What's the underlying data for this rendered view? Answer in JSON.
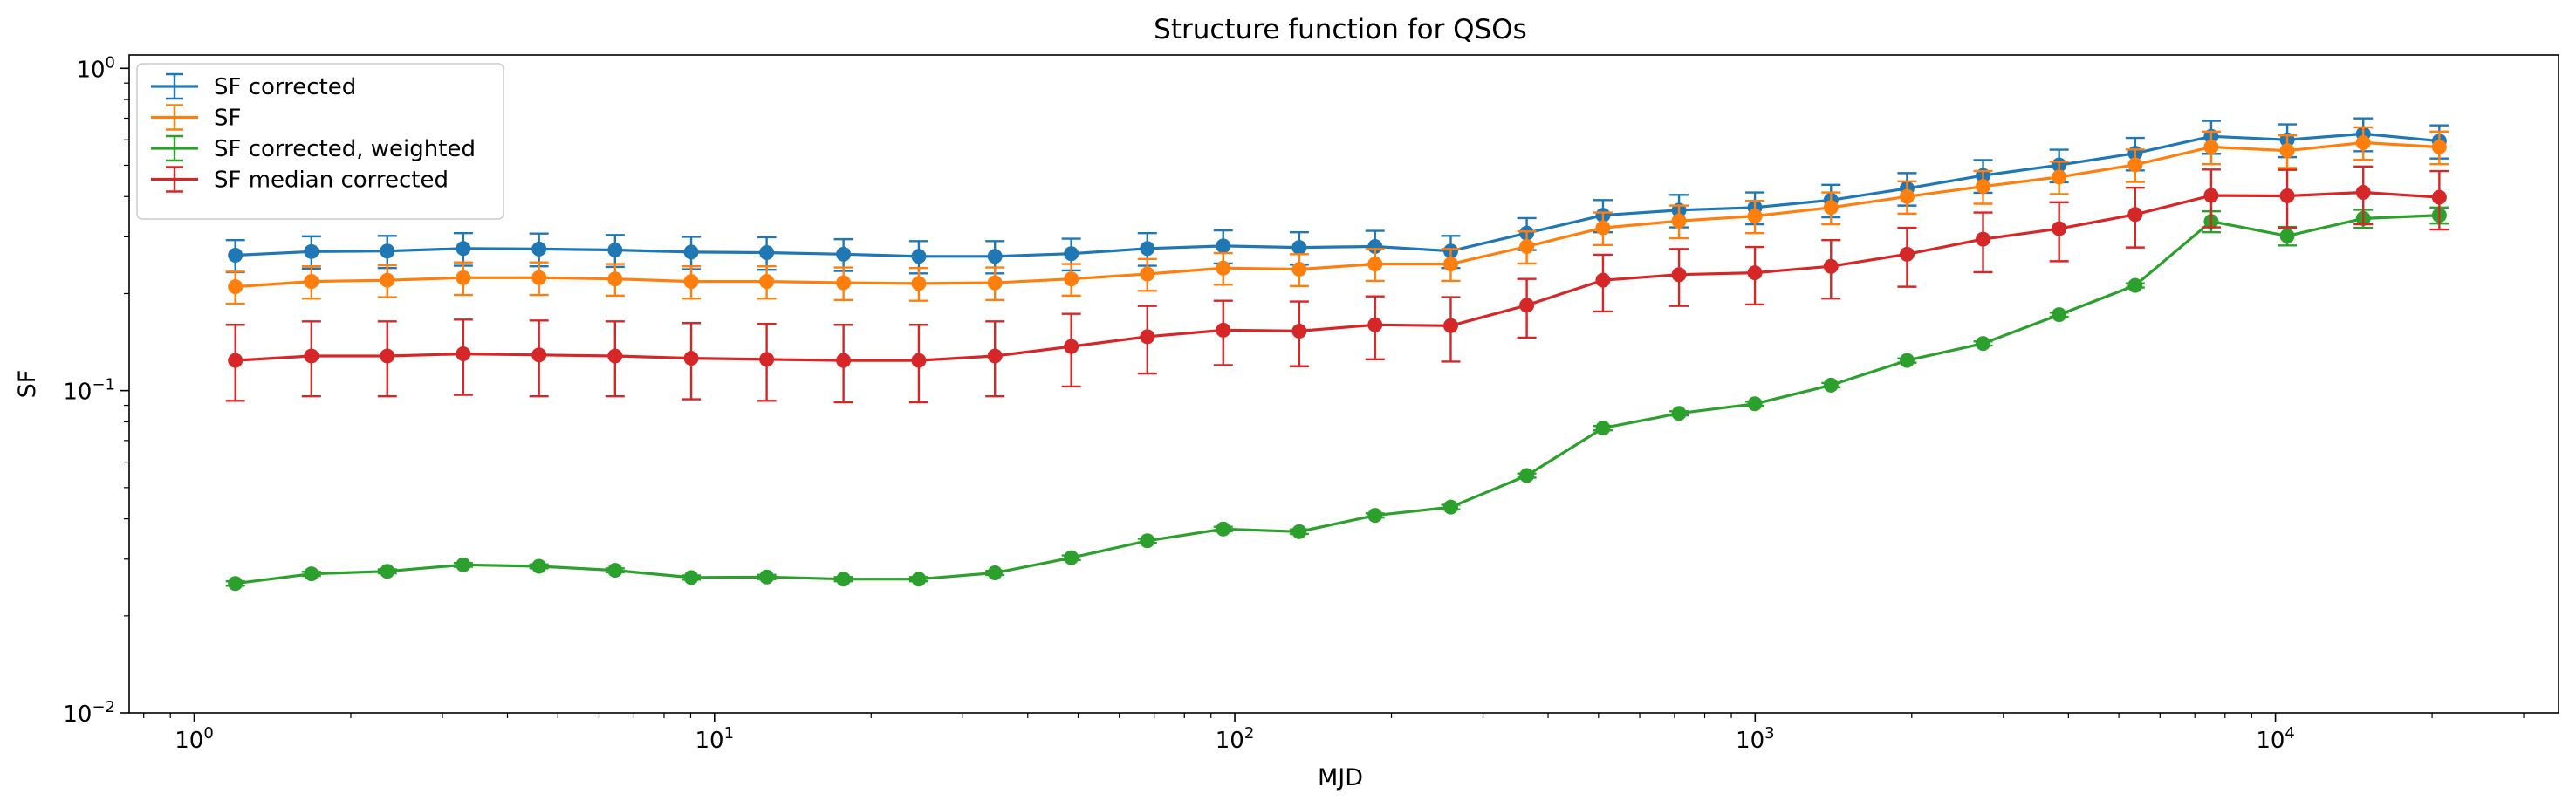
{
  "chart_data": {
    "type": "line",
    "title": "Structure function for QSOs",
    "xlabel": "MJD",
    "ylabel": "SF",
    "xscale": "log",
    "yscale": "log",
    "xlim": [
      0.75,
      35000
    ],
    "ylim": [
      0.01,
      1.1
    ],
    "x_ticks": [
      {
        "value": 1,
        "base": "10",
        "exp": "0"
      },
      {
        "value": 10,
        "base": "10",
        "exp": "1"
      },
      {
        "value": 100,
        "base": "10",
        "exp": "2"
      },
      {
        "value": 1000,
        "base": "10",
        "exp": "3"
      },
      {
        "value": 10000,
        "base": "10",
        "exp": "4"
      }
    ],
    "y_ticks": [
      {
        "value": 0.01,
        "base": "10",
        "exp": "−2"
      },
      {
        "value": 0.1,
        "base": "10",
        "exp": "−1"
      },
      {
        "value": 1,
        "base": "10",
        "exp": "0"
      }
    ],
    "legend_position": "top-left",
    "grid": false,
    "x": [
      1.2,
      1.68,
      2.35,
      3.29,
      4.6,
      6.44,
      9.02,
      12.6,
      17.7,
      24.7,
      34.6,
      48.5,
      67.9,
      95,
      133,
      186,
      260,
      364,
      510,
      714,
      999,
      1399,
      1959,
      2742,
      3839,
      5375,
      7525,
      10535,
      14749,
      20649
    ],
    "series": [
      {
        "name": "SF corrected",
        "color": "#1f77b4",
        "values": [
          0.263,
          0.27,
          0.271,
          0.276,
          0.275,
          0.273,
          0.269,
          0.268,
          0.265,
          0.261,
          0.261,
          0.266,
          0.276,
          0.281,
          0.278,
          0.28,
          0.271,
          0.308,
          0.35,
          0.363,
          0.37,
          0.39,
          0.424,
          0.465,
          0.501,
          0.545,
          0.615,
          0.6,
          0.626,
          0.595
        ],
        "err_low": [
          0.03,
          0.031,
          0.031,
          0.032,
          0.032,
          0.031,
          0.031,
          0.031,
          0.03,
          0.03,
          0.03,
          0.03,
          0.032,
          0.033,
          0.032,
          0.033,
          0.031,
          0.035,
          0.04,
          0.042,
          0.042,
          0.045,
          0.049,
          0.054,
          0.058,
          0.063,
          0.072,
          0.07,
          0.073,
          0.07
        ],
        "err_high": [
          0.03,
          0.031,
          0.031,
          0.032,
          0.032,
          0.031,
          0.031,
          0.031,
          0.03,
          0.03,
          0.03,
          0.03,
          0.032,
          0.033,
          0.032,
          0.033,
          0.031,
          0.035,
          0.04,
          0.042,
          0.042,
          0.045,
          0.049,
          0.054,
          0.058,
          0.063,
          0.072,
          0.07,
          0.073,
          0.07
        ]
      },
      {
        "name": "SF",
        "color": "#ff7f0e",
        "values": [
          0.21,
          0.218,
          0.22,
          0.224,
          0.224,
          0.222,
          0.218,
          0.218,
          0.216,
          0.215,
          0.216,
          0.222,
          0.23,
          0.24,
          0.238,
          0.247,
          0.247,
          0.28,
          0.32,
          0.336,
          0.348,
          0.37,
          0.4,
          0.43,
          0.46,
          0.502,
          0.57,
          0.555,
          0.588,
          0.57
        ],
        "err_low": [
          0.024,
          0.025,
          0.025,
          0.026,
          0.026,
          0.025,
          0.025,
          0.025,
          0.025,
          0.025,
          0.025,
          0.025,
          0.026,
          0.027,
          0.027,
          0.028,
          0.028,
          0.032,
          0.037,
          0.039,
          0.04,
          0.042,
          0.046,
          0.05,
          0.053,
          0.058,
          0.066,
          0.064,
          0.068,
          0.066
        ],
        "err_high": [
          0.024,
          0.025,
          0.025,
          0.026,
          0.026,
          0.025,
          0.025,
          0.025,
          0.025,
          0.025,
          0.025,
          0.025,
          0.026,
          0.027,
          0.027,
          0.028,
          0.028,
          0.032,
          0.037,
          0.039,
          0.04,
          0.042,
          0.046,
          0.05,
          0.053,
          0.058,
          0.066,
          0.064,
          0.068,
          0.066
        ]
      },
      {
        "name": "SF corrected, weighted",
        "color": "#2ca02c",
        "values": [
          0.0252,
          0.027,
          0.0275,
          0.0288,
          0.0285,
          0.0277,
          0.0263,
          0.0264,
          0.026,
          0.026,
          0.0272,
          0.0303,
          0.0342,
          0.0372,
          0.0365,
          0.041,
          0.0435,
          0.0545,
          0.0765,
          0.085,
          0.091,
          0.104,
          0.124,
          0.14,
          0.172,
          0.212,
          0.335,
          0.302,
          0.342,
          0.35
        ],
        "err_low": [
          0.0004,
          0.0004,
          0.0004,
          0.0004,
          0.0004,
          0.0004,
          0.0004,
          0.0004,
          0.0004,
          0.0004,
          0.0004,
          0.0005,
          0.0005,
          0.0006,
          0.0006,
          0.0006,
          0.0007,
          0.0008,
          0.0012,
          0.0013,
          0.0014,
          0.0016,
          0.0019,
          0.0021,
          0.0026,
          0.0032,
          0.025,
          0.02,
          0.022,
          0.02
        ],
        "err_high": [
          0.0004,
          0.0004,
          0.0004,
          0.0004,
          0.0004,
          0.0004,
          0.0004,
          0.0004,
          0.0004,
          0.0004,
          0.0004,
          0.0005,
          0.0005,
          0.0006,
          0.0006,
          0.0006,
          0.0007,
          0.0008,
          0.0012,
          0.0013,
          0.0014,
          0.0016,
          0.0019,
          0.0021,
          0.0026,
          0.0032,
          0.025,
          0.02,
          0.022,
          0.02
        ]
      },
      {
        "name": "SF median corrected",
        "color": "#d62728",
        "values": [
          0.124,
          0.128,
          0.128,
          0.13,
          0.129,
          0.128,
          0.126,
          0.125,
          0.124,
          0.124,
          0.128,
          0.137,
          0.147,
          0.154,
          0.153,
          0.16,
          0.159,
          0.184,
          0.22,
          0.229,
          0.232,
          0.243,
          0.265,
          0.295,
          0.318,
          0.352,
          0.403,
          0.402,
          0.412,
          0.398
        ],
        "err_low": [
          0.031,
          0.032,
          0.032,
          0.033,
          0.033,
          0.032,
          0.032,
          0.032,
          0.032,
          0.032,
          0.032,
          0.034,
          0.034,
          0.034,
          0.034,
          0.035,
          0.036,
          0.038,
          0.044,
          0.046,
          0.047,
          0.05,
          0.055,
          0.062,
          0.066,
          0.074,
          0.082,
          0.082,
          0.084,
          0.082
        ],
        "err_high": [
          0.036,
          0.036,
          0.036,
          0.036,
          0.036,
          0.036,
          0.036,
          0.036,
          0.036,
          0.036,
          0.036,
          0.036,
          0.036,
          0.036,
          0.036,
          0.036,
          0.036,
          0.038,
          0.044,
          0.046,
          0.047,
          0.05,
          0.055,
          0.062,
          0.066,
          0.074,
          0.082,
          0.082,
          0.084,
          0.082
        ]
      }
    ]
  }
}
